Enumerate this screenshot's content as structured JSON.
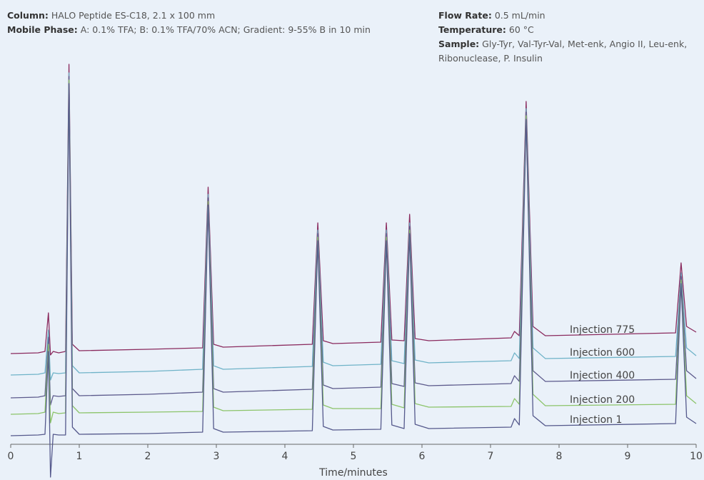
{
  "chart_data": {
    "type": "line",
    "annotations": [
      {
        "label": "Column:",
        "text": "HALO Peptide ES-C18, 2.1 x 100 mm"
      },
      {
        "label": "Mobile Phase:",
        "text": "A: 0.1% TFA; B: 0.1% TFA/70% ACN; Gradient: 9-55% B in 10 min"
      },
      {
        "label": "Flow Rate:",
        "text": "0.5 mL/min"
      },
      {
        "label": "Temperature:",
        "text": "60 °C"
      },
      {
        "label": "Sample:",
        "text": "Gly-Tyr, Val-Tyr-Val, Met-enk, Angio II, Leu-enk, Ribonuclease, P. Insulin"
      }
    ],
    "xlabel": "Time/minutes",
    "xlim": [
      0,
      10
    ],
    "xticks": [
      0,
      1,
      2,
      3,
      4,
      5,
      6,
      7,
      8,
      9,
      10
    ],
    "ylim": [
      -50,
      540
    ],
    "x": [
      0,
      0.4,
      0.5,
      0.55,
      0.58,
      0.62,
      0.7,
      0.8,
      0.85,
      0.9,
      1.0,
      2.0,
      2.8,
      2.88,
      2.96,
      3.1,
      4.4,
      4.48,
      4.56,
      4.7,
      5.4,
      5.48,
      5.56,
      5.74,
      5.82,
      5.9,
      6.1,
      7.3,
      7.35,
      7.42,
      7.52,
      7.62,
      7.8,
      9.7,
      9.78,
      9.86,
      10
    ],
    "series": [
      {
        "name": "Injection 775",
        "color": "#8a2a5e",
        "values": [
          127,
          128,
          130,
          184,
          125,
          130,
          128,
          130,
          532,
          140,
          131,
          133,
          135,
          360,
          140,
          136,
          140,
          310,
          145,
          141,
          143,
          310,
          146,
          145,
          322,
          148,
          145,
          149,
          158,
          152,
          480,
          165,
          152,
          156,
          254,
          165,
          157
        ]
      },
      {
        "name": "Injection 600",
        "color": "#6fb3c8",
        "values": [
          97,
          98,
          100,
          160,
          90,
          100,
          99,
          100,
          520,
          110,
          100,
          102,
          105,
          350,
          110,
          105,
          109,
          300,
          115,
          110,
          112,
          300,
          117,
          113,
          310,
          118,
          114,
          117,
          128,
          120,
          470,
          135,
          120,
          123,
          240,
          135,
          124
        ]
      },
      {
        "name": "Injection 400",
        "color": "#5c5a8c",
        "values": [
          65,
          66,
          68,
          150,
          55,
          68,
          67,
          68,
          515,
          78,
          68,
          70,
          73,
          345,
          78,
          73,
          77,
          295,
          83,
          78,
          80,
          295,
          85,
          81,
          305,
          86,
          82,
          85,
          96,
          88,
          465,
          103,
          88,
          91,
          235,
          103,
          92
        ]
      },
      {
        "name": "Injection 200",
        "color": "#8cc46a",
        "values": [
          42,
          43,
          45,
          140,
          30,
          45,
          43,
          44,
          510,
          54,
          44,
          45,
          46,
          340,
          52,
          47,
          49,
          290,
          55,
          50,
          50,
          290,
          56,
          51,
          300,
          57,
          52,
          53,
          64,
          56,
          460,
          70,
          54,
          56,
          230,
          68,
          57
        ]
      },
      {
        "name": "Injection 1",
        "color": "#55598c",
        "values": [
          12,
          13,
          14,
          130,
          -46,
          14,
          13,
          13,
          505,
          24,
          14,
          15,
          17,
          335,
          22,
          17,
          19,
          285,
          25,
          20,
          21,
          285,
          27,
          22,
          295,
          28,
          22,
          24,
          36,
          27,
          455,
          40,
          26,
          29,
          225,
          38,
          29
        ]
      }
    ]
  }
}
